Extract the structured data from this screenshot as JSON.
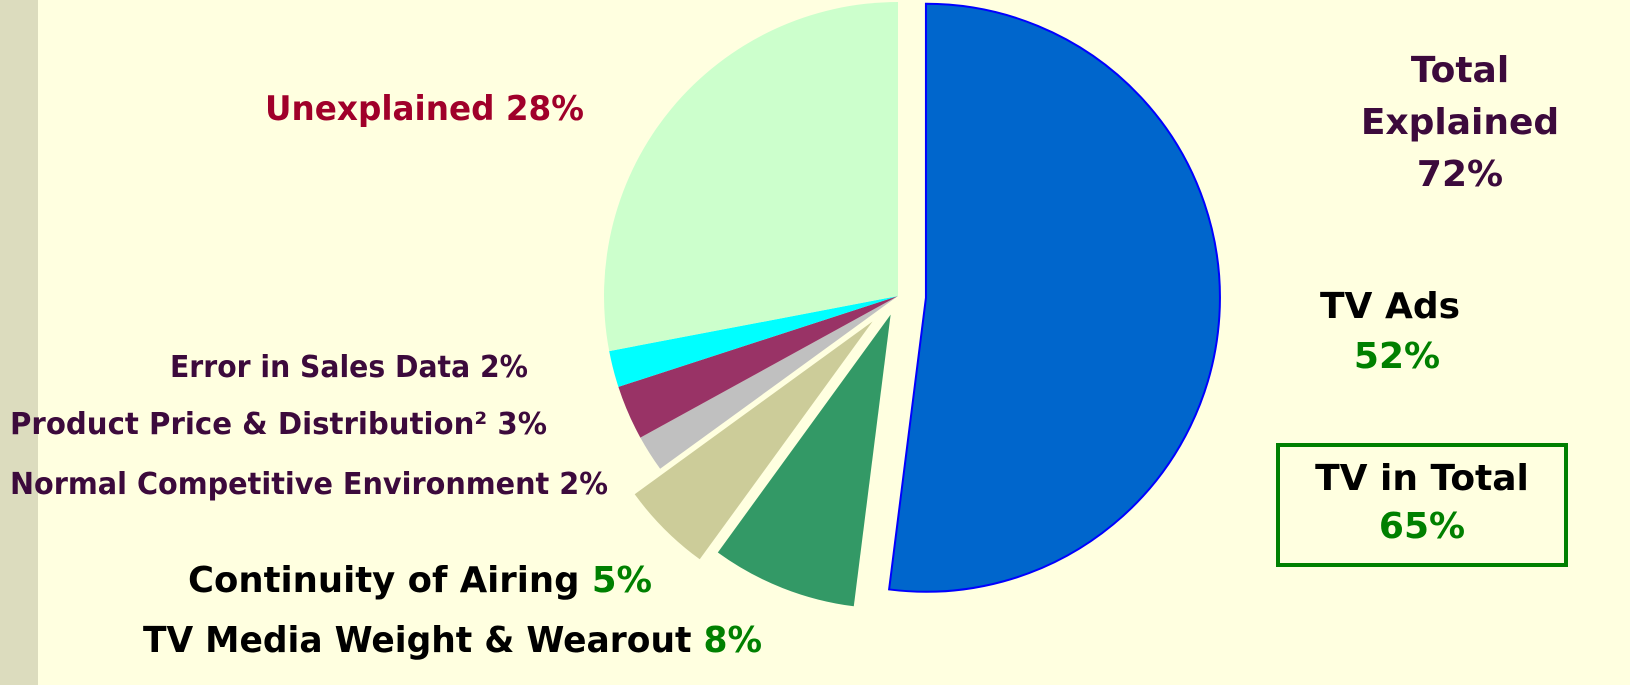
{
  "chart_data": {
    "type": "pie",
    "categories": [
      "TV Ads",
      "TV Media Weight & Wearout",
      "Continuity of Airing",
      "Normal Competitive Environment",
      "Product  Price & Distribution²",
      "Error in Sales Data",
      "Unexplained"
    ],
    "values": [
      52,
      8,
      5,
      2,
      3,
      2,
      28
    ],
    "value_labels": [
      "52%",
      "8%",
      "5%",
      "2%",
      "3%",
      "2%",
      "28%"
    ],
    "colors": [
      "#0066cc",
      "#339966",
      "#cccc99",
      "#c0c0c0",
      "#993366",
      "#00ffff",
      "#ccffcc"
    ],
    "annotations": [
      {
        "text": "Total Explained",
        "value": 72,
        "value_label": "72%"
      },
      {
        "text": "TV in Total",
        "value": 65,
        "value_label": "65%"
      }
    ]
  }
}
